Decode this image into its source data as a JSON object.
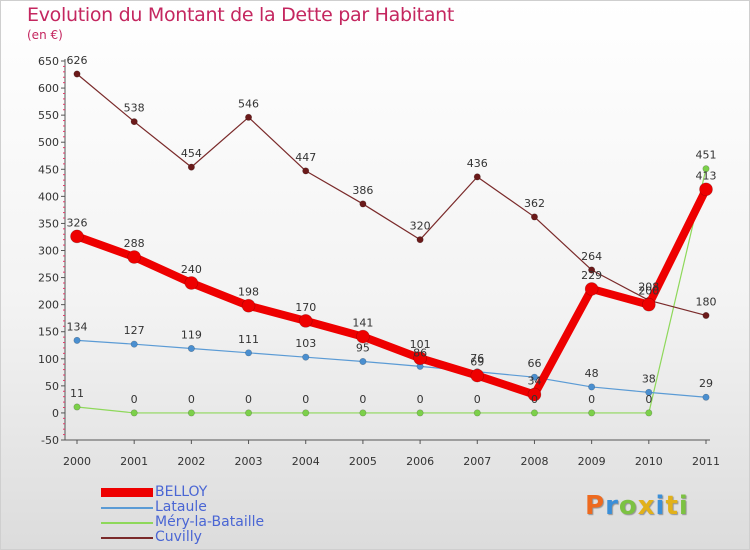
{
  "chart_data": {
    "type": "line",
    "title": "Evolution du Montant de la Dette par Habitant",
    "subtitle": "(en €)",
    "x": [
      "2000",
      "2001",
      "2002",
      "2003",
      "2004",
      "2005",
      "2006",
      "2007",
      "2008",
      "2009",
      "2010",
      "2011"
    ],
    "ylim": [
      -50,
      650
    ],
    "yticks": [
      -50,
      0,
      50,
      100,
      150,
      200,
      250,
      300,
      350,
      400,
      450,
      500,
      550,
      600,
      650
    ],
    "grid": false,
    "legend_position": "bottom-left",
    "series": [
      {
        "name": "BELLOY",
        "color": "#ee0000",
        "values": [
          326,
          288,
          240,
          198,
          170,
          141,
          101,
          69,
          34,
          229,
          200,
          413
        ]
      },
      {
        "name": "Lataule",
        "color": "#5b9bd5",
        "values": [
          134,
          127,
          119,
          111,
          103,
          95,
          86,
          76,
          66,
          48,
          38,
          29
        ]
      },
      {
        "name": "Méry-la-Bataille",
        "color": "#8ed85a",
        "values": [
          11,
          0,
          0,
          0,
          0,
          0,
          0,
          0,
          0,
          0,
          0,
          451
        ]
      },
      {
        "name": "Cuvilly",
        "color": "#7a2a2a",
        "values": [
          626,
          538,
          454,
          546,
          447,
          386,
          320,
          436,
          362,
          264,
          208,
          180
        ]
      }
    ]
  },
  "logo": {
    "text": "Prox-iti",
    "letters": [
      "P",
      "r",
      "o",
      "x",
      "i",
      "t",
      "i"
    ]
  }
}
